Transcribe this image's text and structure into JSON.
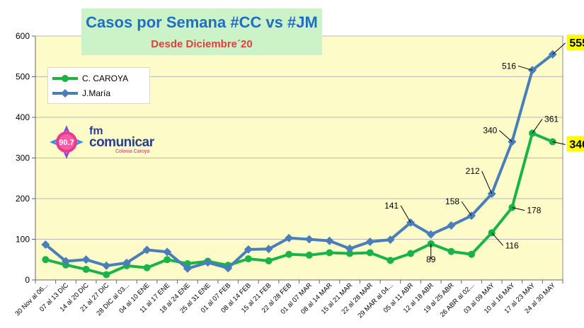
{
  "chart_data": {
    "type": "line",
    "title": "Casos por Semana #CC vs #JM",
    "subtitle": "Desde Diciembre´20",
    "categories": [
      "30 Nov al 06...",
      "07 al 13 DIC",
      "14 al 20 DIC",
      "21 al 27 DIC",
      "28 DIC al 03...",
      "04 al 10 ENE",
      "11 al 17 ENE",
      "18 al 24 ENE",
      "25 al 31 ENE",
      "01 al 07 FEB",
      "08 al 14 FEB",
      "15 al 21 FEB",
      "22 al 28 FEB",
      "01 al 07 MAR",
      "08 al 14 MAR",
      "15 al 21 MAR",
      "22 al 28 MAR",
      "29 MAR al 04...",
      "05 al 11 ABR",
      "12 al 18 ABR",
      "19 al 25 ABR",
      "26 ABR al 02...",
      "03 al 09 MAY",
      "10 al 16 MAY",
      "17 al 23 MAY",
      "24 al 30 MAY"
    ],
    "series": [
      {
        "name": "C. CAROYA",
        "color": "#1ab347",
        "values": [
          50,
          37,
          26,
          13,
          35,
          30,
          50,
          40,
          46,
          36,
          52,
          47,
          63,
          61,
          67,
          65,
          67,
          48,
          65,
          89,
          70,
          63,
          116,
          178,
          361,
          340
        ]
      },
      {
        "name": "J.María",
        "color": "#4a7ebb",
        "values": [
          87,
          46,
          50,
          35,
          42,
          74,
          69,
          28,
          43,
          29,
          75,
          76,
          103,
          100,
          96,
          77,
          94,
          99,
          141,
          112,
          134,
          158,
          212,
          340,
          516,
          555
        ]
      }
    ],
    "ylim": [
      0,
      600
    ],
    "yticks": [
      0,
      100,
      200,
      300,
      400,
      500,
      600
    ],
    "grid": true,
    "legend": "top-left",
    "annotations": [
      {
        "series": 1,
        "index": 18,
        "text": "141"
      },
      {
        "series": 1,
        "index": 21,
        "text": "158"
      },
      {
        "series": 1,
        "index": 22,
        "text": "212"
      },
      {
        "series": 1,
        "index": 23,
        "text": "340"
      },
      {
        "series": 1,
        "index": 24,
        "text": "516"
      },
      {
        "series": 1,
        "index": 25,
        "text": "555",
        "highlight": true
      },
      {
        "series": 0,
        "index": 19,
        "text": "89"
      },
      {
        "series": 0,
        "index": 22,
        "text": "116"
      },
      {
        "series": 0,
        "index": 23,
        "text": "178"
      },
      {
        "series": 0,
        "index": 24,
        "text": "361"
      },
      {
        "series": 0,
        "index": 25,
        "text": "340",
        "highlight": true
      }
    ]
  },
  "logo": {
    "frequency": "90.7",
    "prefix": "fm",
    "name": "comunicar",
    "tagline": "Colonia Caroya"
  },
  "colors": {
    "plot_bg": "#fdfcc8",
    "highlight_bg": "#ffff00",
    "grid": "#b8b8b8"
  }
}
